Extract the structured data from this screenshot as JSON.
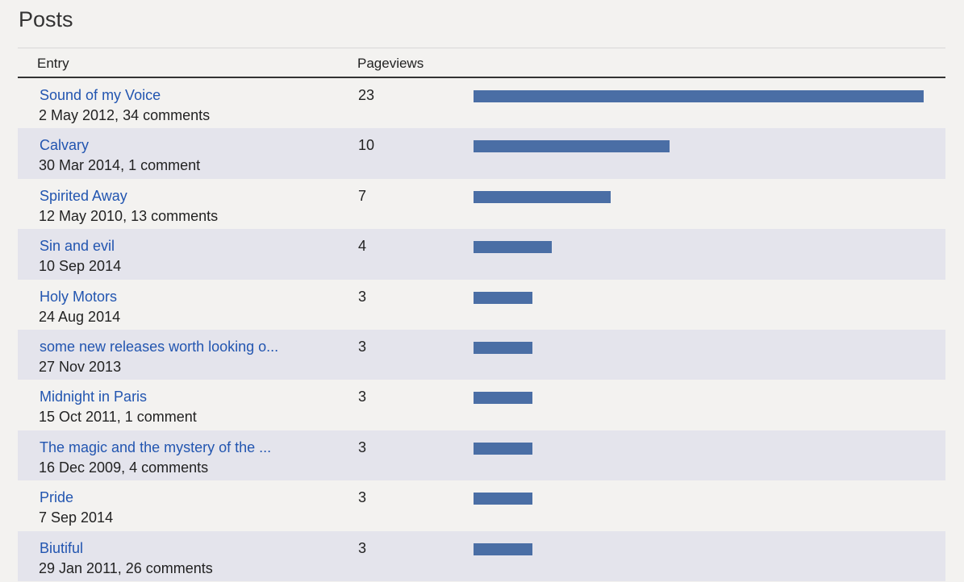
{
  "title": "Posts",
  "columns": {
    "entry": "Entry",
    "pageviews": "Pageviews"
  },
  "colors": {
    "bar": "#4a6ea5",
    "link": "#2255b0",
    "row_alt": "#e4e4ec"
  },
  "posts": [
    {
      "title": "Sound of my Voice",
      "meta": "2 May 2012, 34 comments",
      "pageviews": 23
    },
    {
      "title": "Calvary",
      "meta": "30 Mar 2014, 1 comment",
      "pageviews": 10
    },
    {
      "title": "Spirited Away",
      "meta": "12 May 2010, 13 comments",
      "pageviews": 7
    },
    {
      "title": "Sin and evil",
      "meta": "10 Sep 2014",
      "pageviews": 4
    },
    {
      "title": "Holy Motors",
      "meta": "24 Aug 2014",
      "pageviews": 3
    },
    {
      "title": "some new releases worth looking o...",
      "meta": "27 Nov 2013",
      "pageviews": 3
    },
    {
      "title": "Midnight in Paris",
      "meta": "15 Oct 2011, 1 comment",
      "pageviews": 3
    },
    {
      "title": "The magic and the mystery of the ...",
      "meta": "16 Dec 2009, 4 comments",
      "pageviews": 3
    },
    {
      "title": "Pride",
      "meta": "7 Sep 2014",
      "pageviews": 3
    },
    {
      "title": "Biutiful",
      "meta": "29 Jan 2011, 26 comments",
      "pageviews": 3
    }
  ]
}
